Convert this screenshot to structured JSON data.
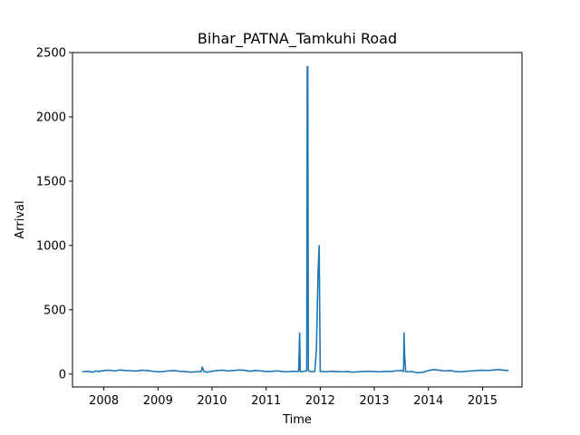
{
  "chart_data": {
    "type": "line",
    "title": "Bihar_PATNA_Tamkuhi Road",
    "xlabel": "Time",
    "ylabel": "Arrival",
    "xlim": [
      2007.42,
      2015.73
    ],
    "ylim": [
      -100,
      2500
    ],
    "x_ticks": [
      2008,
      2009,
      2010,
      2011,
      2012,
      2013,
      2014,
      2015
    ],
    "x_tick_labels": [
      "2008",
      "2009",
      "2010",
      "2011",
      "2012",
      "2013",
      "2014",
      "2015"
    ],
    "y_ticks": [
      0,
      500,
      1000,
      1500,
      2000,
      2500
    ],
    "y_tick_labels": [
      "0",
      "500",
      "1000",
      "1500",
      "2000",
      "2500"
    ],
    "grid": false,
    "color": "#1f77b4",
    "series": [
      {
        "x": [
          2007.6,
          2007.7,
          2007.8,
          2007.85,
          2007.9,
          2008.0,
          2008.1,
          2008.2,
          2008.3,
          2008.4,
          2008.5,
          2008.6,
          2008.7,
          2008.8,
          2008.9,
          2009.0,
          2009.1,
          2009.2,
          2009.3,
          2009.4,
          2009.5,
          2009.6,
          2009.7,
          2009.8,
          2009.82,
          2009.85,
          2009.9,
          2010.0,
          2010.1,
          2010.2,
          2010.3,
          2010.4,
          2010.5,
          2010.6,
          2010.7,
          2010.8,
          2010.9,
          2011.0,
          2011.1,
          2011.2,
          2011.3,
          2011.4,
          2011.5,
          2011.6,
          2011.62,
          2011.63,
          2011.64,
          2011.7,
          2011.75,
          2011.76,
          2011.77,
          2011.78,
          2011.79,
          2011.8,
          2011.85,
          2011.9,
          2011.93,
          2011.96,
          2011.98,
          2012.0,
          2012.02,
          2012.05,
          2012.1,
          2012.2,
          2012.3,
          2012.4,
          2012.5,
          2012.6,
          2012.7,
          2012.8,
          2012.9,
          2013.0,
          2013.1,
          2013.2,
          2013.3,
          2013.4,
          2013.5,
          2013.54,
          2013.55,
          2013.56,
          2013.58,
          2013.6,
          2013.7,
          2013.8,
          2013.9,
          2014.0,
          2014.1,
          2014.2,
          2014.3,
          2014.4,
          2014.5,
          2014.6,
          2014.7,
          2014.8,
          2014.9,
          2015.0,
          2015.1,
          2015.2,
          2015.3,
          2015.4,
          2015.48
        ],
        "values": [
          18,
          22,
          15,
          25,
          20,
          28,
          30,
          25,
          32,
          28,
          26,
          24,
          30,
          28,
          22,
          18,
          20,
          25,
          28,
          22,
          20,
          15,
          18,
          20,
          55,
          20,
          15,
          22,
          28,
          30,
          25,
          28,
          32,
          30,
          22,
          28,
          25,
          20,
          22,
          25,
          20,
          18,
          22,
          20,
          320,
          25,
          18,
          22,
          25,
          2390,
          2390,
          30,
          25,
          22,
          18,
          20,
          200,
          800,
          1000,
          20,
          22,
          20,
          18,
          22,
          20,
          18,
          20,
          15,
          18,
          20,
          22,
          20,
          18,
          22,
          20,
          25,
          28,
          20,
          320,
          150,
          20,
          18,
          20,
          10,
          15,
          28,
          35,
          30,
          25,
          28,
          20,
          18,
          22,
          25,
          28,
          30,
          28,
          32,
          35,
          30,
          28
        ]
      }
    ]
  }
}
